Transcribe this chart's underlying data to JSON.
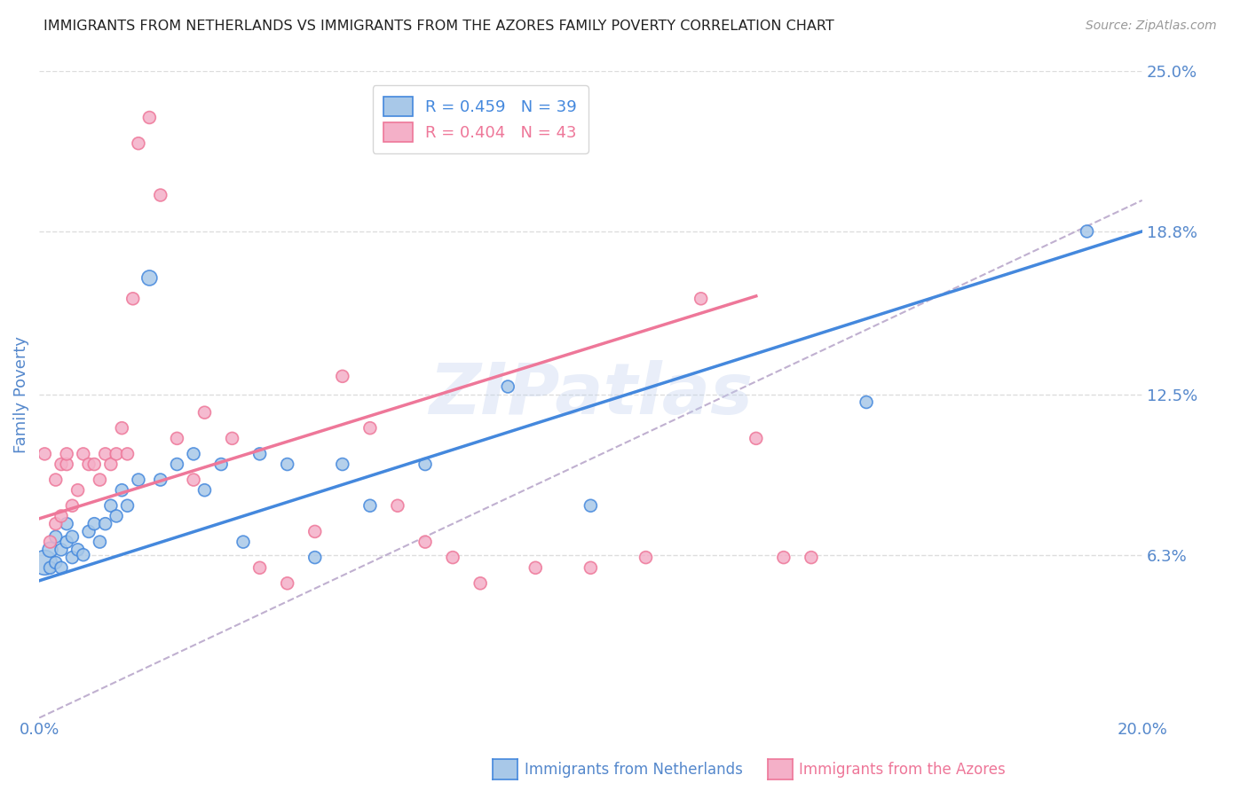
{
  "title": "IMMIGRANTS FROM NETHERLANDS VS IMMIGRANTS FROM THE AZORES FAMILY POVERTY CORRELATION CHART",
  "source": "Source: ZipAtlas.com",
  "ylabel": "Family Poverty",
  "xlim": [
    0.0,
    0.2
  ],
  "ylim": [
    0.0,
    0.25
  ],
  "yticks": [
    0.063,
    0.125,
    0.188,
    0.25
  ],
  "ytick_labels": [
    "6.3%",
    "12.5%",
    "18.8%",
    "25.0%"
  ],
  "xticks": [
    0.0,
    0.04,
    0.08,
    0.12,
    0.16,
    0.2
  ],
  "xtick_labels": [
    "0.0%",
    "",
    "",
    "",
    "",
    "20.0%"
  ],
  "legend_netherlands": "R = 0.459   N = 39",
  "legend_azores": "R = 0.404   N = 43",
  "color_netherlands": "#a8c8e8",
  "color_azores": "#f4b0c8",
  "color_netherlands_line": "#4488dd",
  "color_azores_line": "#ee7799",
  "color_diagonal": "#c0b0d0",
  "watermark": "ZIPatlas",
  "netherlands_scatter_x": [
    0.001,
    0.002,
    0.002,
    0.003,
    0.003,
    0.004,
    0.004,
    0.005,
    0.005,
    0.006,
    0.006,
    0.007,
    0.008,
    0.009,
    0.01,
    0.011,
    0.012,
    0.013,
    0.014,
    0.015,
    0.016,
    0.018,
    0.02,
    0.022,
    0.025,
    0.028,
    0.03,
    0.033,
    0.037,
    0.04,
    0.045,
    0.05,
    0.055,
    0.06,
    0.07,
    0.085,
    0.1,
    0.15,
    0.19
  ],
  "netherlands_scatter_y": [
    0.06,
    0.065,
    0.058,
    0.07,
    0.06,
    0.065,
    0.058,
    0.068,
    0.075,
    0.062,
    0.07,
    0.065,
    0.063,
    0.072,
    0.075,
    0.068,
    0.075,
    0.082,
    0.078,
    0.088,
    0.082,
    0.092,
    0.17,
    0.092,
    0.098,
    0.102,
    0.088,
    0.098,
    0.068,
    0.102,
    0.098,
    0.062,
    0.098,
    0.082,
    0.098,
    0.128,
    0.082,
    0.122,
    0.188
  ],
  "netherlands_scatter_sizes": [
    400,
    150,
    100,
    100,
    100,
    100,
    100,
    100,
    100,
    100,
    100,
    100,
    100,
    100,
    100,
    100,
    100,
    100,
    100,
    100,
    100,
    100,
    150,
    100,
    100,
    100,
    100,
    100,
    100,
    100,
    100,
    100,
    100,
    100,
    100,
    100,
    100,
    100,
    100
  ],
  "azores_scatter_x": [
    0.001,
    0.002,
    0.003,
    0.003,
    0.004,
    0.004,
    0.005,
    0.005,
    0.006,
    0.007,
    0.008,
    0.009,
    0.01,
    0.011,
    0.012,
    0.013,
    0.014,
    0.015,
    0.016,
    0.017,
    0.018,
    0.02,
    0.022,
    0.025,
    0.028,
    0.03,
    0.035,
    0.04,
    0.045,
    0.05,
    0.055,
    0.06,
    0.065,
    0.07,
    0.075,
    0.08,
    0.09,
    0.1,
    0.11,
    0.12,
    0.13,
    0.135,
    0.14
  ],
  "azores_scatter_y": [
    0.102,
    0.068,
    0.075,
    0.092,
    0.078,
    0.098,
    0.098,
    0.102,
    0.082,
    0.088,
    0.102,
    0.098,
    0.098,
    0.092,
    0.102,
    0.098,
    0.102,
    0.112,
    0.102,
    0.162,
    0.222,
    0.232,
    0.202,
    0.108,
    0.092,
    0.118,
    0.108,
    0.058,
    0.052,
    0.072,
    0.132,
    0.112,
    0.082,
    0.068,
    0.062,
    0.052,
    0.058,
    0.058,
    0.062,
    0.162,
    0.108,
    0.062,
    0.062
  ],
  "azores_scatter_sizes": [
    100,
    100,
    100,
    100,
    100,
    100,
    100,
    100,
    100,
    100,
    100,
    100,
    100,
    100,
    100,
    100,
    100,
    100,
    100,
    100,
    100,
    100,
    100,
    100,
    100,
    100,
    100,
    100,
    100,
    100,
    100,
    100,
    100,
    100,
    100,
    100,
    100,
    100,
    100,
    100,
    100,
    100,
    100
  ],
  "netherlands_line_x": [
    0.0,
    0.2
  ],
  "netherlands_line_y": [
    0.053,
    0.188
  ],
  "azores_line_x": [
    0.0,
    0.13
  ],
  "azores_line_y": [
    0.077,
    0.163
  ],
  "diagonal_line_x": [
    0.0,
    0.2
  ],
  "diagonal_line_y": [
    0.0,
    0.2
  ],
  "background_color": "#ffffff",
  "grid_color": "#dddddd",
  "title_color": "#222222",
  "axis_label_color": "#5588cc",
  "tick_color": "#5588cc",
  "watermark_color": "#c0d0ee",
  "watermark_alpha": 0.35
}
